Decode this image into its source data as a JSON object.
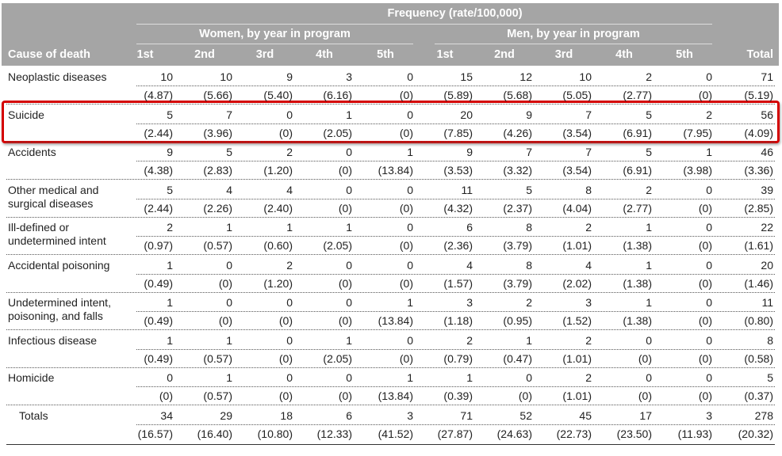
{
  "header": {
    "group_title": "Frequency (rate/100,000)",
    "women_title": "Women, by year in program",
    "men_title": "Men, by year in program",
    "columns": [
      "Cause of death",
      "1st",
      "2nd",
      "3rd",
      "4th",
      "5th",
      "1st",
      "2nd",
      "3rd",
      "4th",
      "5th",
      "Total"
    ]
  },
  "table": {
    "rows": [
      {
        "cause": "Neoplastic diseases",
        "counts": [
          10,
          10,
          9,
          3,
          0,
          15,
          12,
          10,
          2,
          0,
          71
        ],
        "rates": [
          "(4.87)",
          "(5.66)",
          "(5.40)",
          "(6.16)",
          "(0)",
          "(5.89)",
          "(5.68)",
          "(5.05)",
          "(2.77)",
          "(0)",
          "(5.19)"
        ]
      },
      {
        "cause": "Suicide",
        "counts": [
          5,
          7,
          0,
          1,
          0,
          20,
          9,
          7,
          5,
          2,
          56
        ],
        "rates": [
          "(2.44)",
          "(3.96)",
          "(0)",
          "(2.05)",
          "(0)",
          "(7.85)",
          "(4.26)",
          "(3.54)",
          "(6.91)",
          "(7.95)",
          "(4.09)"
        ]
      },
      {
        "cause": "Accidents",
        "counts": [
          9,
          5,
          2,
          0,
          1,
          9,
          7,
          7,
          5,
          1,
          46
        ],
        "rates": [
          "(4.38)",
          "(2.83)",
          "(1.20)",
          "(0)",
          "(13.84)",
          "(3.53)",
          "(3.32)",
          "(3.54)",
          "(6.91)",
          "(3.98)",
          "(3.36)"
        ]
      },
      {
        "cause": "Other medical and surgical diseases",
        "counts": [
          5,
          4,
          4,
          0,
          0,
          11,
          5,
          8,
          2,
          0,
          39
        ],
        "rates": [
          "(2.44)",
          "(2.26)",
          "(2.40)",
          "(0)",
          "(0)",
          "(4.32)",
          "(2.37)",
          "(4.04)",
          "(2.77)",
          "(0)",
          "(2.85)"
        ]
      },
      {
        "cause": "Ill-defined or undetermined intent",
        "counts": [
          2,
          1,
          1,
          1,
          0,
          6,
          8,
          2,
          1,
          0,
          22
        ],
        "rates": [
          "(0.97)",
          "(0.57)",
          "(0.60)",
          "(2.05)",
          "(0)",
          "(2.36)",
          "(3.79)",
          "(1.01)",
          "(1.38)",
          "(0)",
          "(1.61)"
        ]
      },
      {
        "cause": "Accidental poisoning",
        "counts": [
          1,
          0,
          2,
          0,
          0,
          4,
          8,
          4,
          1,
          0,
          20
        ],
        "rates": [
          "(0.49)",
          "(0)",
          "(1.20)",
          "(0)",
          "(0)",
          "(1.57)",
          "(3.79)",
          "(2.02)",
          "(1.38)",
          "(0)",
          "(1.46)"
        ]
      },
      {
        "cause": "Undetermined intent, poisoning, and falls",
        "counts": [
          1,
          0,
          0,
          0,
          1,
          3,
          2,
          3,
          1,
          0,
          11
        ],
        "rates": [
          "(0.49)",
          "(0)",
          "(0)",
          "(0)",
          "(13.84)",
          "(1.18)",
          "(0.95)",
          "(1.52)",
          "(1.38)",
          "(0)",
          "(0.80)"
        ]
      },
      {
        "cause": "Infectious disease",
        "counts": [
          1,
          1,
          0,
          1,
          0,
          2,
          1,
          2,
          0,
          0,
          8
        ],
        "rates": [
          "(0.49)",
          "(0.57)",
          "(0)",
          "(2.05)",
          "(0)",
          "(0.79)",
          "(0.47)",
          "(1.01)",
          "(0)",
          "(0)",
          "(0.58)"
        ]
      },
      {
        "cause": "Homicide",
        "counts": [
          0,
          1,
          0,
          0,
          1,
          1,
          0,
          2,
          0,
          0,
          5
        ],
        "rates": [
          "(0)",
          "(0.57)",
          "(0)",
          "(0)",
          "(13.84)",
          "(0.39)",
          "(0)",
          "(1.01)",
          "(0)",
          "(0)",
          "(0.37)"
        ]
      },
      {
        "cause": "Totals",
        "counts": [
          34,
          29,
          18,
          6,
          3,
          71,
          52,
          45,
          17,
          3,
          278
        ],
        "rates": [
          "(16.57)",
          "(16.40)",
          "(10.80)",
          "(12.33)",
          "(41.52)",
          "(27.87)",
          "(24.63)",
          "(22.73)",
          "(23.50)",
          "(11.93)",
          "(20.32)"
        ]
      }
    ]
  }
}
